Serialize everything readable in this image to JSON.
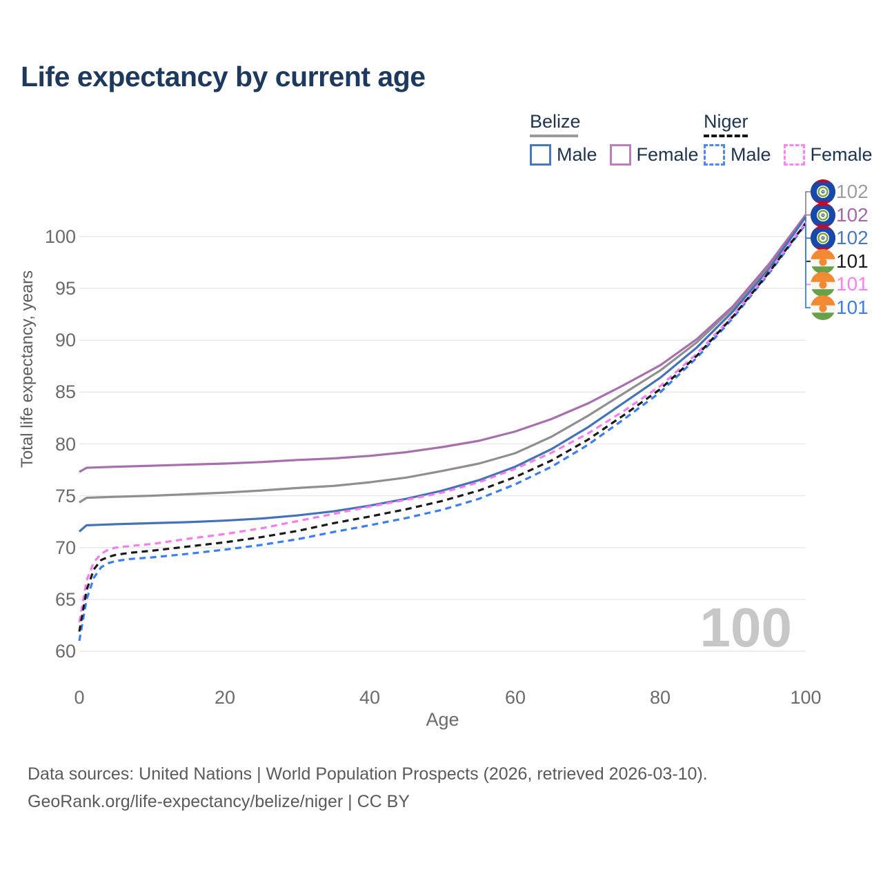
{
  "title": "Life expectancy by current age",
  "legend": {
    "groups": [
      {
        "country": "Belize",
        "line_style": "solid",
        "underline_color": "#9a9a9a",
        "items": [
          {
            "label": "Male",
            "color": "#4a77b9"
          },
          {
            "label": "Female",
            "color": "#bb7fbd"
          }
        ]
      },
      {
        "country": "Niger",
        "line_style": "dashed",
        "underline_color": "#141414",
        "items": [
          {
            "label": "Male",
            "color": "#4d87f3"
          },
          {
            "label": "Female",
            "color": "#fb86f2"
          }
        ]
      }
    ]
  },
  "chart_data": {
    "type": "line",
    "title": "Life expectancy by current age",
    "xlabel": "Age",
    "ylabel": "Total life expectancy, years",
    "xlim": [
      0,
      100
    ],
    "ylim": [
      60,
      100
    ],
    "xticks": [
      0,
      20,
      40,
      60,
      80,
      100
    ],
    "yticks": [
      60,
      65,
      70,
      75,
      80,
      85,
      90,
      95,
      100
    ],
    "grid": "horizontal",
    "grid_color": "#e9e9e9",
    "watermark": "100",
    "watermark_color": "#c7c7c7",
    "legend_position": "top-right",
    "series": [
      {
        "id": "belize-total",
        "country": "Belize",
        "group": "both sexes",
        "color": "#8f8f8f",
        "dashed": false,
        "end_label": "102",
        "end_label_color": "#9e9e9e",
        "flag_icon": "belize-flag-icon",
        "points": [
          [
            0,
            74.35
          ],
          [
            1,
            74.8
          ],
          [
            3,
            74.85
          ],
          [
            5,
            74.9
          ],
          [
            10,
            75.0
          ],
          [
            15,
            75.15
          ],
          [
            20,
            75.3
          ],
          [
            25,
            75.5
          ],
          [
            30,
            75.75
          ],
          [
            35,
            75.95
          ],
          [
            40,
            76.3
          ],
          [
            45,
            76.75
          ],
          [
            50,
            77.4
          ],
          [
            55,
            78.1
          ],
          [
            60,
            79.1
          ],
          [
            65,
            80.7
          ],
          [
            70,
            82.7
          ],
          [
            75,
            84.9
          ],
          [
            80,
            87.1
          ],
          [
            85,
            89.8
          ],
          [
            90,
            93.1
          ],
          [
            95,
            97.2
          ],
          [
            100,
            102.0
          ]
        ]
      },
      {
        "id": "belize-female",
        "country": "Belize",
        "group": "female",
        "color": "#a76fae",
        "dashed": false,
        "end_label": "102",
        "end_label_color": "#a569a8",
        "flag_icon": "belize-flag-icon",
        "points": [
          [
            0,
            77.3
          ],
          [
            1,
            77.7
          ],
          [
            3,
            77.75
          ],
          [
            5,
            77.8
          ],
          [
            10,
            77.9
          ],
          [
            15,
            78.0
          ],
          [
            20,
            78.1
          ],
          [
            25,
            78.25
          ],
          [
            30,
            78.45
          ],
          [
            35,
            78.6
          ],
          [
            40,
            78.85
          ],
          [
            45,
            79.2
          ],
          [
            50,
            79.7
          ],
          [
            55,
            80.3
          ],
          [
            60,
            81.2
          ],
          [
            65,
            82.4
          ],
          [
            70,
            83.9
          ],
          [
            75,
            85.7
          ],
          [
            80,
            87.6
          ],
          [
            85,
            90.1
          ],
          [
            90,
            93.3
          ],
          [
            95,
            97.4
          ],
          [
            100,
            102.1
          ]
        ]
      },
      {
        "id": "belize-male",
        "country": "Belize",
        "group": "male",
        "color": "#4472b9",
        "dashed": false,
        "end_label": "102",
        "end_label_color": "#4a79c4",
        "flag_icon": "belize-flag-icon",
        "points": [
          [
            0,
            71.55
          ],
          [
            1,
            72.15
          ],
          [
            3,
            72.2
          ],
          [
            5,
            72.25
          ],
          [
            10,
            72.35
          ],
          [
            15,
            72.45
          ],
          [
            20,
            72.6
          ],
          [
            25,
            72.8
          ],
          [
            30,
            73.1
          ],
          [
            35,
            73.5
          ],
          [
            40,
            74.05
          ],
          [
            45,
            74.7
          ],
          [
            50,
            75.5
          ],
          [
            55,
            76.5
          ],
          [
            60,
            77.8
          ],
          [
            65,
            79.5
          ],
          [
            70,
            81.6
          ],
          [
            75,
            84.0
          ],
          [
            80,
            86.4
          ],
          [
            85,
            89.3
          ],
          [
            90,
            92.8
          ],
          [
            95,
            96.9
          ],
          [
            100,
            101.9
          ]
        ]
      },
      {
        "id": "niger-total",
        "country": "Niger",
        "group": "both sexes",
        "color": "#1a1a1a",
        "dashed": true,
        "end_label": "101",
        "end_label_color": "#1a1a1a",
        "flag_icon": "niger-flag-icon",
        "points": [
          [
            0,
            61.9
          ],
          [
            1,
            65.9
          ],
          [
            2,
            67.9
          ],
          [
            3,
            68.8
          ],
          [
            4,
            69.1
          ],
          [
            5,
            69.3
          ],
          [
            7,
            69.5
          ],
          [
            10,
            69.7
          ],
          [
            15,
            70.1
          ],
          [
            20,
            70.5
          ],
          [
            25,
            71.0
          ],
          [
            30,
            71.6
          ],
          [
            35,
            72.35
          ],
          [
            40,
            73.0
          ],
          [
            45,
            73.7
          ],
          [
            50,
            74.5
          ],
          [
            55,
            75.5
          ],
          [
            60,
            76.8
          ],
          [
            65,
            78.4
          ],
          [
            70,
            80.4
          ],
          [
            75,
            82.8
          ],
          [
            80,
            85.3
          ],
          [
            85,
            88.5
          ],
          [
            90,
            92.3
          ],
          [
            95,
            96.6
          ],
          [
            100,
            101.3
          ]
        ]
      },
      {
        "id": "niger-female",
        "country": "Niger",
        "group": "female",
        "color": "#f97cee",
        "dashed": true,
        "end_label": "101",
        "end_label_color": "#fb80f0",
        "flag_icon": "niger-flag-icon",
        "points": [
          [
            0,
            62.8
          ],
          [
            1,
            66.8
          ],
          [
            2,
            68.6
          ],
          [
            3,
            69.4
          ],
          [
            4,
            69.8
          ],
          [
            5,
            70.0
          ],
          [
            7,
            70.15
          ],
          [
            10,
            70.35
          ],
          [
            15,
            70.85
          ],
          [
            20,
            71.3
          ],
          [
            25,
            71.85
          ],
          [
            30,
            72.55
          ],
          [
            35,
            73.25
          ],
          [
            40,
            73.95
          ],
          [
            45,
            74.6
          ],
          [
            50,
            75.3
          ],
          [
            55,
            76.3
          ],
          [
            60,
            77.6
          ],
          [
            65,
            79.15
          ],
          [
            70,
            81.0
          ],
          [
            75,
            83.2
          ],
          [
            80,
            85.6
          ],
          [
            85,
            88.7
          ],
          [
            90,
            92.4
          ],
          [
            95,
            96.7
          ],
          [
            100,
            101.4
          ]
        ]
      },
      {
        "id": "niger-male",
        "country": "Niger",
        "group": "male",
        "color": "#3b7df2",
        "dashed": true,
        "end_label": "101",
        "end_label_color": "#3b7df2",
        "flag_icon": "niger-flag-icon",
        "points": [
          [
            0,
            61.0
          ],
          [
            1,
            65.0
          ],
          [
            2,
            67.1
          ],
          [
            3,
            68.1
          ],
          [
            4,
            68.5
          ],
          [
            5,
            68.7
          ],
          [
            7,
            68.9
          ],
          [
            10,
            69.05
          ],
          [
            15,
            69.4
          ],
          [
            20,
            69.8
          ],
          [
            25,
            70.25
          ],
          [
            30,
            70.8
          ],
          [
            35,
            71.5
          ],
          [
            40,
            72.15
          ],
          [
            45,
            72.85
          ],
          [
            50,
            73.65
          ],
          [
            55,
            74.7
          ],
          [
            60,
            76.1
          ],
          [
            65,
            77.8
          ],
          [
            70,
            79.9
          ],
          [
            75,
            82.4
          ],
          [
            80,
            85.0
          ],
          [
            85,
            88.3
          ],
          [
            90,
            92.15
          ],
          [
            95,
            96.5
          ],
          [
            100,
            101.2
          ]
        ]
      }
    ]
  },
  "footer": {
    "line1": "Data sources: United Nations | World Population Prospects (2026, retrieved 2026-03-10).",
    "line2": "GeoRank.org/life-expectancy/belize/niger | CC BY"
  },
  "colors": {
    "title_text": "#1d3a5e",
    "legend_text": "#1e3450",
    "axis_text": "#6b6b6b",
    "footer_text": "#5a5a5a"
  }
}
